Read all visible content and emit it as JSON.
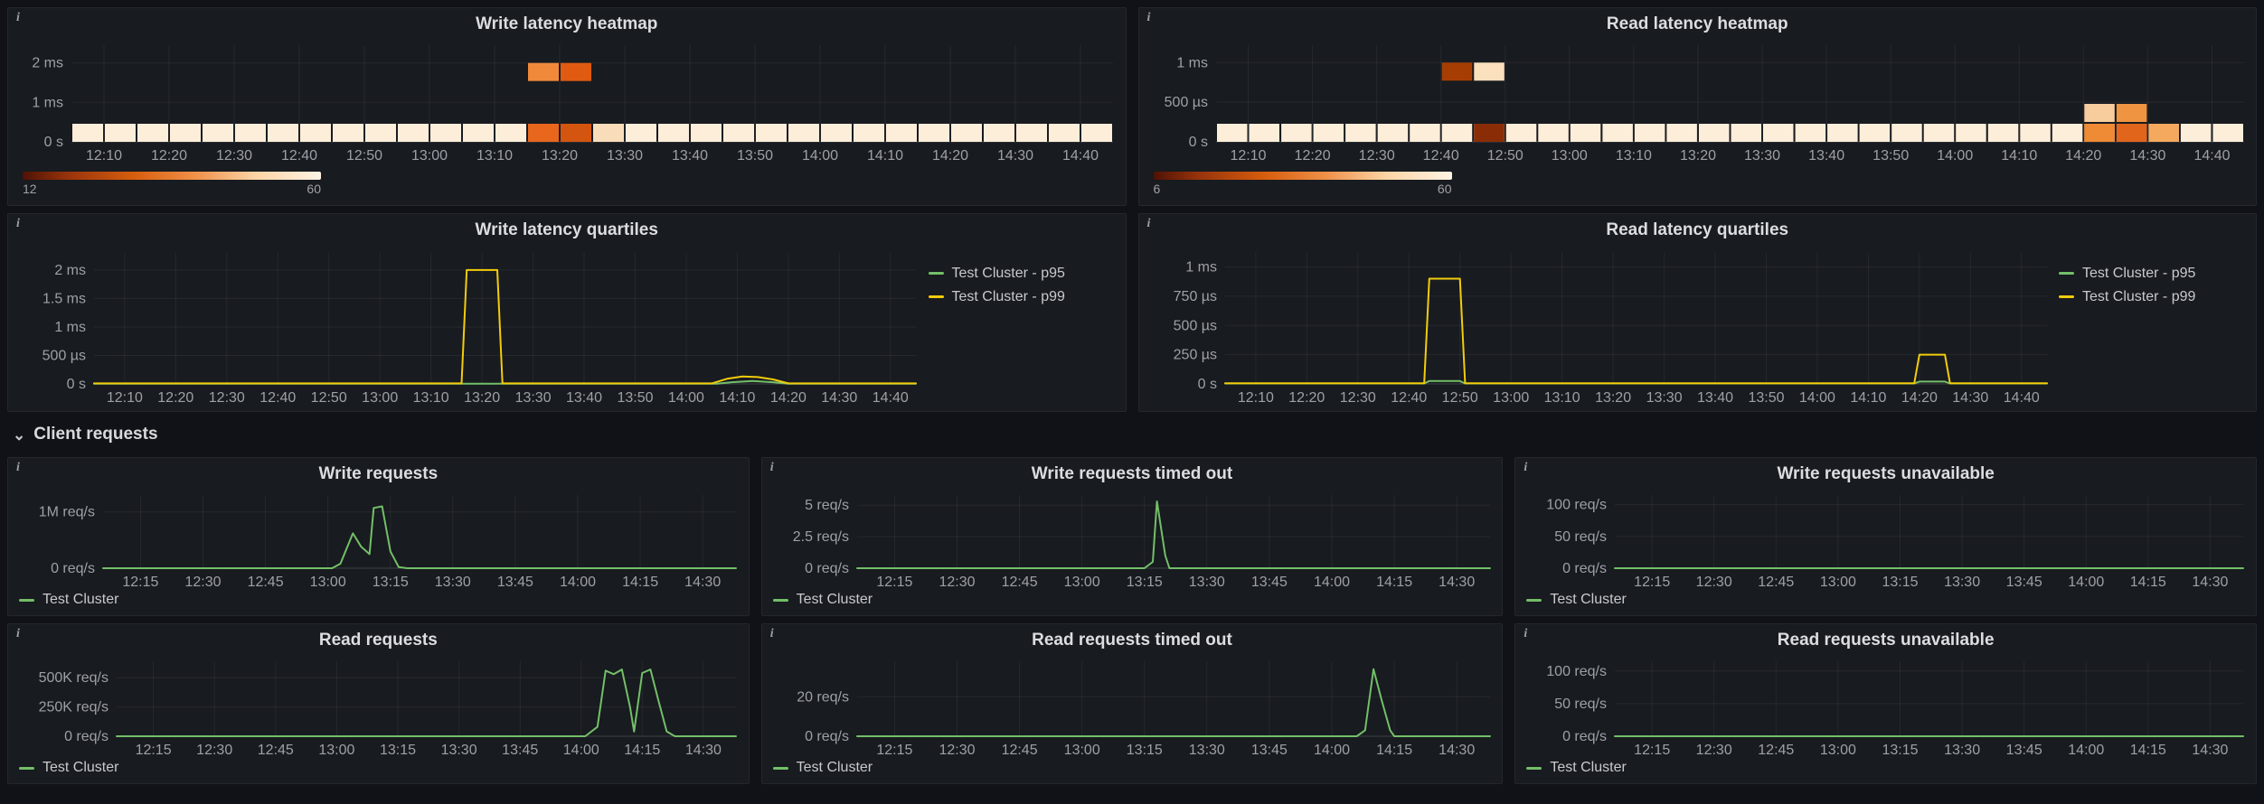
{
  "colors": {
    "page_bg": "#111217",
    "panel_bg": "#181b1f",
    "green": "#73bf69",
    "yellow": "#f2cc0c"
  },
  "icons": {
    "info": "i"
  },
  "row_header": {
    "chevron": "⌄",
    "label": "Client requests"
  },
  "legend_quartiles": [
    {
      "label": "Test Cluster - p95",
      "color": "#73bf69"
    },
    {
      "label": "Test Cluster - p99",
      "color": "#f2cc0c"
    }
  ],
  "legend_client": [
    {
      "label": "Test Cluster",
      "color": "#73bf69"
    }
  ],
  "chart_data": [
    {
      "id": "write-latency-heatmap",
      "type": "heatmap",
      "title": "Write latency heatmap",
      "ml": 70,
      "mb": 30,
      "mt": 8,
      "x_range": [
        5,
        165
      ],
      "x_ticks": {
        "v": [
          10,
          20,
          30,
          40,
          50,
          60,
          70,
          80,
          90,
          100,
          110,
          120,
          130,
          140,
          150,
          160
        ],
        "l": [
          "12:10",
          "12:20",
          "12:30",
          "12:40",
          "12:50",
          "13:00",
          "13:10",
          "13:20",
          "13:30",
          "13:40",
          "13:50",
          "14:00",
          "14:10",
          "14:20",
          "14:30",
          "14:40"
        ]
      },
      "y_max": 2.45,
      "y_ticks": {
        "v": [
          0,
          1,
          2
        ],
        "l": [
          "0 s",
          "1 ms",
          "2 ms"
        ]
      },
      "base_row": {
        "from": 5,
        "to": 160,
        "step": 5,
        "color": "#fdeeda"
      },
      "cells": [
        {
          "x": 75,
          "r": 0,
          "c": "#e8671d"
        },
        {
          "x": 80,
          "r": 0,
          "c": "#d4550f"
        },
        {
          "x": 85,
          "r": 0,
          "c": "#f9ddba"
        },
        {
          "x": 75,
          "v": 2,
          "c": "#f08a3a"
        },
        {
          "x": 80,
          "v": 2,
          "c": "#e05a12"
        }
      ],
      "scale": {
        "min": "12",
        "max": "60"
      }
    },
    {
      "id": "read-latency-heatmap",
      "type": "heatmap",
      "title": "Read latency heatmap",
      "ml": 85,
      "mb": 30,
      "mt": 8,
      "x_range": [
        5,
        165
      ],
      "x_ticks": {
        "v": [
          10,
          20,
          30,
          40,
          50,
          60,
          70,
          80,
          90,
          100,
          110,
          120,
          130,
          140,
          150,
          160
        ],
        "l": [
          "12:10",
          "12:20",
          "12:30",
          "12:40",
          "12:50",
          "13:00",
          "13:10",
          "13:20",
          "13:30",
          "13:40",
          "13:50",
          "14:00",
          "14:10",
          "14:20",
          "14:30",
          "14:40"
        ]
      },
      "y_max": 1.22,
      "y_ticks": {
        "v": [
          0,
          0.5,
          1
        ],
        "l": [
          "0 s",
          "500 µs",
          "1 ms"
        ]
      },
      "base_row": {
        "from": 5,
        "to": 160,
        "step": 5,
        "color": "#fdeeda"
      },
      "cells": [
        {
          "x": 45,
          "r": 0,
          "c": "#8a2d06"
        },
        {
          "x": 40,
          "v": 1,
          "c": "#a63e03"
        },
        {
          "x": 45,
          "v": 1,
          "c": "#fbe0bd"
        },
        {
          "x": 140,
          "r": 0,
          "c": "#ef8a35"
        },
        {
          "x": 145,
          "r": 0,
          "c": "#e2651c"
        },
        {
          "x": 150,
          "r": 0,
          "c": "#f4a95e"
        },
        {
          "x": 140,
          "r": 1,
          "c": "#f7cd9d"
        },
        {
          "x": 145,
          "r": 1,
          "c": "#ef9440"
        }
      ],
      "scale": {
        "min": "6",
        "max": "60"
      }
    },
    {
      "id": "write-latency-quartiles",
      "type": "line",
      "title": "Write latency quartiles",
      "ml": 95,
      "mb": 30,
      "mt": 10,
      "x_range": [
        4,
        165
      ],
      "x_ticks": {
        "v": [
          10,
          20,
          30,
          40,
          50,
          60,
          70,
          80,
          90,
          100,
          110,
          120,
          130,
          140,
          150,
          160
        ],
        "l": [
          "12:10",
          "12:20",
          "12:30",
          "12:40",
          "12:50",
          "13:00",
          "13:10",
          "13:20",
          "13:30",
          "13:40",
          "13:50",
          "14:00",
          "14:10",
          "14:20",
          "14:30",
          "14:40"
        ]
      },
      "y_max": 2.3,
      "y_ticks": {
        "v": [
          0,
          0.5,
          1,
          1.5,
          2
        ],
        "l": [
          "0 s",
          "500 µs",
          "1 ms",
          "1.5 ms",
          "2 ms"
        ]
      },
      "series": [
        {
          "name": "Test Cluster - p95",
          "color": "#73bf69",
          "points": [
            [
              4,
              0.005
            ],
            [
              126,
              0.005
            ],
            [
              129,
              0.03
            ],
            [
              133,
              0.05
            ],
            [
              137,
              0.03
            ],
            [
              140,
              0.005
            ],
            [
              165,
              0.005
            ]
          ]
        },
        {
          "name": "Test Cluster - p99",
          "color": "#f2cc0c",
          "points": [
            [
              4,
              0.01
            ],
            [
              76,
              0.01
            ],
            [
              77,
              2
            ],
            [
              83,
              2
            ],
            [
              84,
              0.01
            ],
            [
              125,
              0.01
            ],
            [
              128,
              0.09
            ],
            [
              131,
              0.13
            ],
            [
              134,
              0.12
            ],
            [
              137,
              0.08
            ],
            [
              140,
              0.01
            ],
            [
              165,
              0.01
            ]
          ]
        }
      ]
    },
    {
      "id": "read-latency-quartiles",
      "type": "line",
      "title": "Read latency quartiles",
      "ml": 95,
      "mb": 30,
      "mt": 10,
      "x_range": [
        4,
        165
      ],
      "x_ticks": {
        "v": [
          10,
          20,
          30,
          40,
          50,
          60,
          70,
          80,
          90,
          100,
          110,
          120,
          130,
          140,
          150,
          160
        ],
        "l": [
          "12:10",
          "12:20",
          "12:30",
          "12:40",
          "12:50",
          "13:00",
          "13:10",
          "13:20",
          "13:30",
          "13:40",
          "13:50",
          "14:00",
          "14:10",
          "14:20",
          "14:30",
          "14:40"
        ]
      },
      "y_max": 1.12,
      "y_ticks": {
        "v": [
          0,
          0.25,
          0.5,
          0.75,
          1
        ],
        "l": [
          "0 s",
          "250 µs",
          "500 µs",
          "750 µs",
          "1 ms"
        ]
      },
      "series": [
        {
          "name": "Test Cluster - p95",
          "color": "#73bf69",
          "points": [
            [
              4,
              0.004
            ],
            [
              43,
              0.004
            ],
            [
              44,
              0.025
            ],
            [
              50,
              0.025
            ],
            [
              51,
              0.004
            ],
            [
              139,
              0.004
            ],
            [
              140,
              0.02
            ],
            [
              145,
              0.02
            ],
            [
              146,
              0.004
            ],
            [
              165,
              0.004
            ]
          ]
        },
        {
          "name": "Test Cluster - p99",
          "color": "#f2cc0c",
          "points": [
            [
              4,
              0.006
            ],
            [
              43,
              0.006
            ],
            [
              44,
              0.9
            ],
            [
              50,
              0.9
            ],
            [
              51,
              0.006
            ],
            [
              139,
              0.006
            ],
            [
              140,
              0.25
            ],
            [
              145,
              0.25
            ],
            [
              146,
              0.006
            ],
            [
              165,
              0.006
            ]
          ]
        }
      ]
    },
    {
      "id": "write-requests",
      "type": "line",
      "title": "Write requests",
      "ml": 105,
      "mb": 26,
      "mt": 8,
      "x_range": [
        6,
        158
      ],
      "x_ticks": {
        "v": [
          15,
          30,
          45,
          60,
          75,
          90,
          105,
          120,
          135,
          150
        ],
        "l": [
          "12:15",
          "12:30",
          "12:45",
          "13:00",
          "13:15",
          "13:30",
          "13:45",
          "14:00",
          "14:15",
          "14:30"
        ]
      },
      "y_max": 1300000,
      "y_ticks": {
        "v": [
          0,
          1000000
        ],
        "l": [
          "0 req/s",
          "1M req/s"
        ]
      },
      "series": [
        {
          "name": "Test Cluster",
          "color": "#73bf69",
          "points": [
            [
              6,
              0
            ],
            [
              61,
              0
            ],
            [
              63,
              80000
            ],
            [
              66,
              620000
            ],
            [
              68,
              380000
            ],
            [
              70,
              250000
            ],
            [
              71,
              1070000
            ],
            [
              73,
              1100000
            ],
            [
              75,
              300000
            ],
            [
              77,
              20000
            ],
            [
              79,
              0
            ],
            [
              158,
              0
            ]
          ]
        }
      ]
    },
    {
      "id": "write-requests-timed-out",
      "type": "line",
      "title": "Write requests timed out",
      "ml": 105,
      "mb": 26,
      "mt": 8,
      "x_range": [
        6,
        158
      ],
      "x_ticks": {
        "v": [
          15,
          30,
          45,
          60,
          75,
          90,
          105,
          120,
          135,
          150
        ],
        "l": [
          "12:15",
          "12:30",
          "12:45",
          "13:00",
          "13:15",
          "13:30",
          "13:45",
          "14:00",
          "14:15",
          "14:30"
        ]
      },
      "y_max": 5.8,
      "y_ticks": {
        "v": [
          0,
          2.5,
          5
        ],
        "l": [
          "0 req/s",
          "2.5 req/s",
          "5 req/s"
        ]
      },
      "series": [
        {
          "name": "Test Cluster",
          "color": "#73bf69",
          "points": [
            [
              6,
              0
            ],
            [
              75,
              0
            ],
            [
              77,
              0.5
            ],
            [
              78,
              5.3
            ],
            [
              80,
              1
            ],
            [
              81,
              0
            ],
            [
              158,
              0
            ]
          ]
        }
      ]
    },
    {
      "id": "write-requests-unavailable",
      "type": "line",
      "title": "Write requests unavailable",
      "ml": 110,
      "mb": 26,
      "mt": 8,
      "x_range": [
        6,
        158
      ],
      "x_ticks": {
        "v": [
          15,
          30,
          45,
          60,
          75,
          90,
          105,
          120,
          135,
          150
        ],
        "l": [
          "12:15",
          "12:30",
          "12:45",
          "13:00",
          "13:15",
          "13:30",
          "13:45",
          "14:00",
          "14:15",
          "14:30"
        ]
      },
      "y_max": 115,
      "y_ticks": {
        "v": [
          0,
          50,
          100
        ],
        "l": [
          "0 req/s",
          "50 req/s",
          "100 req/s"
        ]
      },
      "series": [
        {
          "name": "Test Cluster",
          "color": "#73bf69",
          "points": [
            [
              6,
              0
            ],
            [
              158,
              0
            ]
          ]
        }
      ]
    },
    {
      "id": "read-requests",
      "type": "line",
      "title": "Read requests",
      "ml": 120,
      "mb": 26,
      "mt": 8,
      "x_range": [
        6,
        158
      ],
      "x_ticks": {
        "v": [
          15,
          30,
          45,
          60,
          75,
          90,
          105,
          120,
          135,
          150
        ],
        "l": [
          "12:15",
          "12:30",
          "12:45",
          "13:00",
          "13:15",
          "13:30",
          "13:45",
          "14:00",
          "14:15",
          "14:30"
        ]
      },
      "y_max": 640000,
      "y_ticks": {
        "v": [
          0,
          250000,
          500000
        ],
        "l": [
          "0 req/s",
          "250K req/s",
          "500K req/s"
        ]
      },
      "series": [
        {
          "name": "Test Cluster",
          "color": "#73bf69",
          "points": [
            [
              6,
              0
            ],
            [
              121,
              0
            ],
            [
              124,
              80000
            ],
            [
              126,
              560000
            ],
            [
              128,
              530000
            ],
            [
              130,
              570000
            ],
            [
              132,
              250000
            ],
            [
              133,
              40000
            ],
            [
              135,
              540000
            ],
            [
              137,
              570000
            ],
            [
              139,
              300000
            ],
            [
              141,
              40000
            ],
            [
              143,
              0
            ],
            [
              158,
              0
            ]
          ]
        }
      ]
    },
    {
      "id": "read-requests-timed-out",
      "type": "line",
      "title": "Read requests timed out",
      "ml": 105,
      "mb": 26,
      "mt": 8,
      "x_range": [
        6,
        158
      ],
      "x_ticks": {
        "v": [
          15,
          30,
          45,
          60,
          75,
          90,
          105,
          120,
          135,
          150
        ],
        "l": [
          "12:15",
          "12:30",
          "12:45",
          "13:00",
          "13:15",
          "13:30",
          "13:45",
          "14:00",
          "14:15",
          "14:30"
        ]
      },
      "y_max": 38,
      "y_ticks": {
        "v": [
          0,
          20
        ],
        "l": [
          "0 req/s",
          "20 req/s"
        ]
      },
      "series": [
        {
          "name": "Test Cluster",
          "color": "#73bf69",
          "points": [
            [
              6,
              0
            ],
            [
              126,
              0
            ],
            [
              128,
              3
            ],
            [
              130,
              34
            ],
            [
              132,
              18
            ],
            [
              134,
              3
            ],
            [
              135,
              0
            ],
            [
              158,
              0
            ]
          ]
        }
      ]
    },
    {
      "id": "read-requests-unavailable",
      "type": "line",
      "title": "Read requests unavailable",
      "ml": 110,
      "mb": 26,
      "mt": 8,
      "x_range": [
        6,
        158
      ],
      "x_ticks": {
        "v": [
          15,
          30,
          45,
          60,
          75,
          90,
          105,
          120,
          135,
          150
        ],
        "l": [
          "12:15",
          "12:30",
          "12:45",
          "13:00",
          "13:15",
          "13:30",
          "13:45",
          "14:00",
          "14:15",
          "14:30"
        ]
      },
      "y_max": 115,
      "y_ticks": {
        "v": [
          0,
          50,
          100
        ],
        "l": [
          "0 req/s",
          "50 req/s",
          "100 req/s"
        ]
      },
      "series": [
        {
          "name": "Test Cluster",
          "color": "#73bf69",
          "points": [
            [
              6,
              0
            ],
            [
              158,
              0
            ]
          ]
        }
      ]
    }
  ]
}
